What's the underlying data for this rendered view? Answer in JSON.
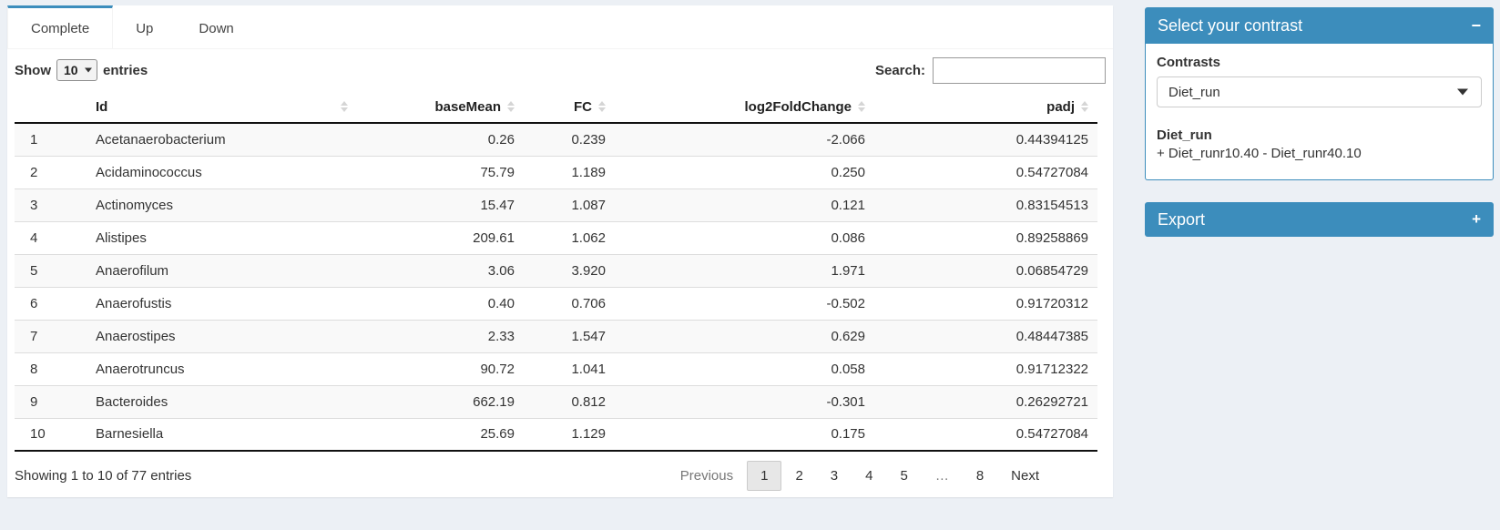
{
  "tabs": [
    {
      "label": "Complete",
      "active": true
    },
    {
      "label": "Up",
      "active": false
    },
    {
      "label": "Down",
      "active": false
    }
  ],
  "controls": {
    "show_label": "Show",
    "page_length": "10",
    "entries_label": "entries",
    "search_label": "Search:",
    "search_value": ""
  },
  "table": {
    "columns": [
      "",
      "Id",
      "baseMean",
      "FC",
      "log2FoldChange",
      "padj"
    ],
    "rows": [
      {
        "n": "1",
        "id": "Acetanaerobacterium",
        "baseMean": "0.26",
        "fc": "0.239",
        "log2fc": "-2.066",
        "padj": "0.44394125"
      },
      {
        "n": "2",
        "id": "Acidaminococcus",
        "baseMean": "75.79",
        "fc": "1.189",
        "log2fc": "0.250",
        "padj": "0.54727084"
      },
      {
        "n": "3",
        "id": "Actinomyces",
        "baseMean": "15.47",
        "fc": "1.087",
        "log2fc": "0.121",
        "padj": "0.83154513"
      },
      {
        "n": "4",
        "id": "Alistipes",
        "baseMean": "209.61",
        "fc": "1.062",
        "log2fc": "0.086",
        "padj": "0.89258869"
      },
      {
        "n": "5",
        "id": "Anaerofilum",
        "baseMean": "3.06",
        "fc": "3.920",
        "log2fc": "1.971",
        "padj": "0.06854729"
      },
      {
        "n": "6",
        "id": "Anaerofustis",
        "baseMean": "0.40",
        "fc": "0.706",
        "log2fc": "-0.502",
        "padj": "0.91720312"
      },
      {
        "n": "7",
        "id": "Anaerostipes",
        "baseMean": "2.33",
        "fc": "1.547",
        "log2fc": "0.629",
        "padj": "0.48447385"
      },
      {
        "n": "8",
        "id": "Anaerotruncus",
        "baseMean": "90.72",
        "fc": "1.041",
        "log2fc": "0.058",
        "padj": "0.91712322"
      },
      {
        "n": "9",
        "id": "Bacteroides",
        "baseMean": "662.19",
        "fc": "0.812",
        "log2fc": "-0.301",
        "padj": "0.26292721"
      },
      {
        "n": "10",
        "id": "Barnesiella",
        "baseMean": "25.69",
        "fc": "1.129",
        "log2fc": "0.175",
        "padj": "0.54727084"
      }
    ]
  },
  "footer": {
    "info": "Showing 1 to 10 of 77 entries",
    "pagination": {
      "previous": "Previous",
      "pages": [
        "1",
        "2",
        "3",
        "4",
        "5",
        "…",
        "8"
      ],
      "active": "1",
      "next": "Next"
    }
  },
  "contrast_panel": {
    "title": "Select your contrast",
    "collapse_icon": "−",
    "contrasts_label": "Contrasts",
    "selected_contrast": "Diet_run",
    "contrast_name": "Diet_run",
    "contrast_formula": "+ Diet_runr10.40 - Diet_runr40.10"
  },
  "export_panel": {
    "title": "Export",
    "expand_icon": "+"
  },
  "colors": {
    "accent": "#3c8dbc",
    "page_bg": "#ecf0f5",
    "stripe": "#f9f9f9"
  }
}
